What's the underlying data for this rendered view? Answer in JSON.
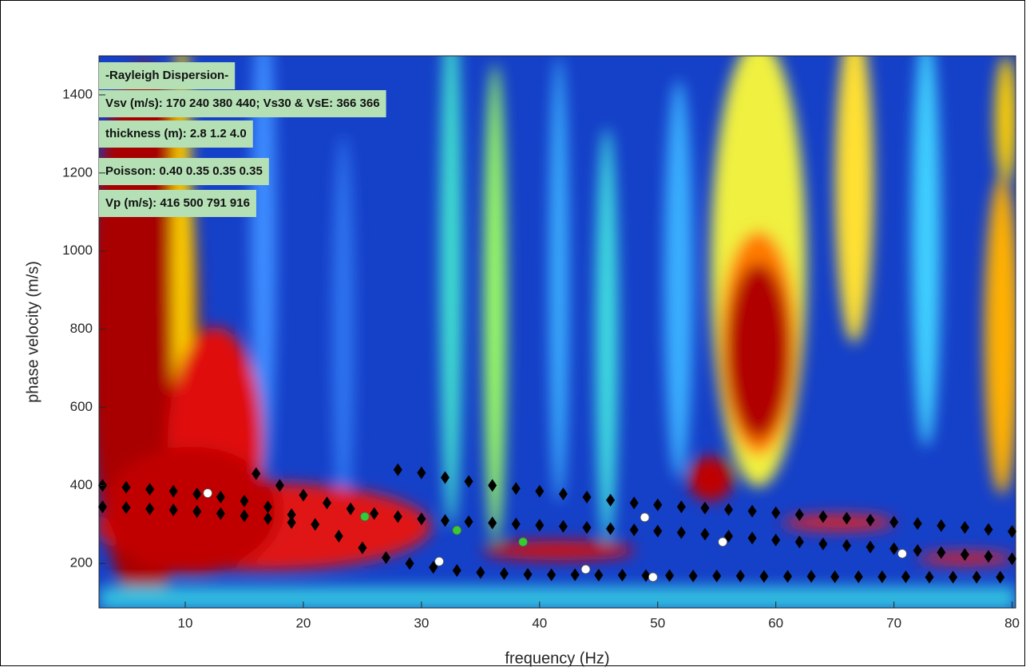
{
  "chart_data": {
    "type": "scatter",
    "xlabel": "frequency (Hz)",
    "ylabel": "phase velocity (m/s)",
    "annotations": [
      "-Rayleigh Dispersion-",
      "Vsv (m/s): 170  240  380  440; Vs30 & VsE: 366  366",
      "thickness (m): 2.8    1.2    4.0",
      "Poisson: 0.40  0.35  0.35  0.35",
      "Vp (m/s): 416  500  791  916"
    ],
    "xlim": [
      2.7,
      80.3
    ],
    "ylim": [
      86,
      1500
    ],
    "xticks": [
      10,
      20,
      30,
      40,
      50,
      60,
      70,
      80
    ],
    "yticks": [
      200,
      400,
      600,
      800,
      1000,
      1200,
      1400
    ],
    "grid": false,
    "series": [
      {
        "marker": "diamond",
        "color": "#000000",
        "x": [
          28,
          30,
          32,
          34,
          36,
          38,
          40,
          42,
          44,
          46,
          48,
          50,
          52,
          54,
          56,
          58,
          60,
          62,
          64,
          66,
          68,
          70,
          72,
          74,
          76,
          78,
          80
        ],
        "y": [
          440,
          432,
          420,
          410,
          400,
          392,
          385,
          378,
          370,
          362,
          355,
          350,
          345,
          342,
          338,
          334,
          330,
          325,
          320,
          316,
          311,
          306,
          302,
          297,
          292,
          287,
          282
        ]
      },
      {
        "marker": "diamond",
        "color": "#000000",
        "x": [
          16,
          18,
          20,
          22,
          24,
          26,
          28,
          30,
          32,
          34,
          36,
          38,
          40,
          42,
          44,
          46,
          48,
          50,
          52,
          54,
          56,
          58,
          60,
          62,
          64,
          66,
          68,
          70,
          72,
          74,
          76,
          78,
          80
        ],
        "y": [
          430,
          400,
          375,
          355,
          340,
          328,
          320,
          314,
          310,
          307,
          304,
          301,
          298,
          295,
          292,
          289,
          286,
          283,
          279,
          275,
          270,
          265,
          260,
          255,
          250,
          246,
          242,
          238,
          233,
          228,
          223,
          218,
          212
        ]
      },
      {
        "marker": "diamond",
        "color": "#000000",
        "x": [
          3,
          5,
          7,
          9,
          11,
          13,
          15,
          17,
          19,
          21,
          23,
          25,
          27,
          29,
          31,
          33,
          35,
          37,
          39,
          41,
          43,
          45,
          47,
          49,
          51,
          53,
          55,
          57,
          59,
          61,
          63,
          65,
          67,
          69,
          71,
          73,
          75,
          77,
          79
        ],
        "y": [
          400,
          395,
          390,
          385,
          378,
          370,
          360,
          345,
          325,
          300,
          270,
          240,
          215,
          200,
          190,
          182,
          177,
          174,
          172,
          171,
          171,
          170,
          170,
          169,
          169,
          168,
          168,
          168,
          167,
          167,
          167,
          166,
          166,
          166,
          166,
          165,
          165,
          165,
          165
        ]
      },
      {
        "marker": "diamond",
        "color": "#000000",
        "x": [
          3,
          5,
          7,
          9,
          11,
          13,
          15,
          17,
          19
        ],
        "y": [
          345,
          343,
          340,
          337,
          333,
          328,
          322,
          315,
          305
        ]
      },
      {
        "marker": "circle",
        "color": "#ffffff",
        "x": [
          11.9,
          31.5,
          43.9,
          49.6,
          48.9,
          55.5,
          70.7
        ],
        "y": [
          380,
          205,
          185,
          165,
          318,
          255,
          225
        ]
      },
      {
        "marker": "circle",
        "color": "#33cc33",
        "x": [
          25.2,
          33,
          38.6
        ],
        "y": [
          320,
          285,
          255
        ]
      }
    ]
  }
}
